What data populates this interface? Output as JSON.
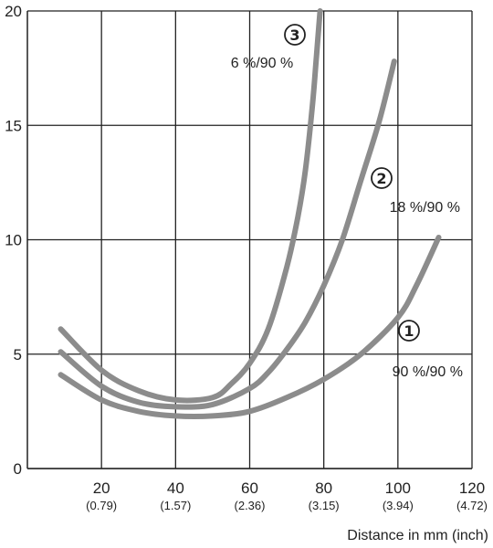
{
  "chart_data": {
    "type": "line",
    "title": "",
    "xlabel": "Distance in mm (inch)",
    "ylabel": "",
    "xlim": [
      0,
      120
    ],
    "ylim": [
      0,
      20
    ],
    "grid": true,
    "x_ticks": [
      {
        "value": 20,
        "label": "20",
        "sublabel": "(0.79)"
      },
      {
        "value": 40,
        "label": "40",
        "sublabel": "(1.57)"
      },
      {
        "value": 60,
        "label": "60",
        "sublabel": "(2.36)"
      },
      {
        "value": 80,
        "label": "80",
        "sublabel": "(3.15)"
      },
      {
        "value": 100,
        "label": "100",
        "sublabel": "(3.94)"
      },
      {
        "value": 120,
        "label": "120",
        "sublabel": "(4.72)"
      }
    ],
    "y_ticks": [
      {
        "value": 0,
        "label": "0"
      },
      {
        "value": 5,
        "label": "5"
      },
      {
        "value": 10,
        "label": "10"
      },
      {
        "value": 15,
        "label": "15"
      },
      {
        "value": 20,
        "label": "20"
      }
    ],
    "series": [
      {
        "marker": "1",
        "label": "90 %/90 %",
        "x": [
          9,
          20,
          30,
          40,
          50,
          60,
          70,
          80,
          90,
          100,
          105,
          111
        ],
        "y": [
          4.1,
          3.0,
          2.5,
          2.3,
          2.3,
          2.5,
          3.1,
          3.9,
          5.0,
          6.6,
          8.0,
          10.1
        ]
      },
      {
        "marker": "2",
        "label": "18 %/90 %",
        "x": [
          9,
          20,
          30,
          40,
          50,
          60,
          65,
          70,
          75,
          80,
          85,
          90,
          95,
          99
        ],
        "y": [
          5.1,
          3.6,
          2.9,
          2.7,
          2.8,
          3.5,
          4.2,
          5.2,
          6.4,
          8.0,
          10.0,
          12.6,
          15.2,
          17.8
        ]
      },
      {
        "marker": "3",
        "label": "6 %/90 %",
        "x": [
          9,
          20,
          30,
          40,
          50,
          55,
          60,
          65,
          70,
          73,
          75,
          77,
          78,
          79
        ],
        "y": [
          6.1,
          4.3,
          3.4,
          3.0,
          3.1,
          3.7,
          4.6,
          6.1,
          8.8,
          11.0,
          13.0,
          16.0,
          18.0,
          20.0
        ]
      }
    ],
    "colors": {
      "line": "#8c8c8c",
      "grid": "#222222",
      "text": "#222222"
    }
  }
}
